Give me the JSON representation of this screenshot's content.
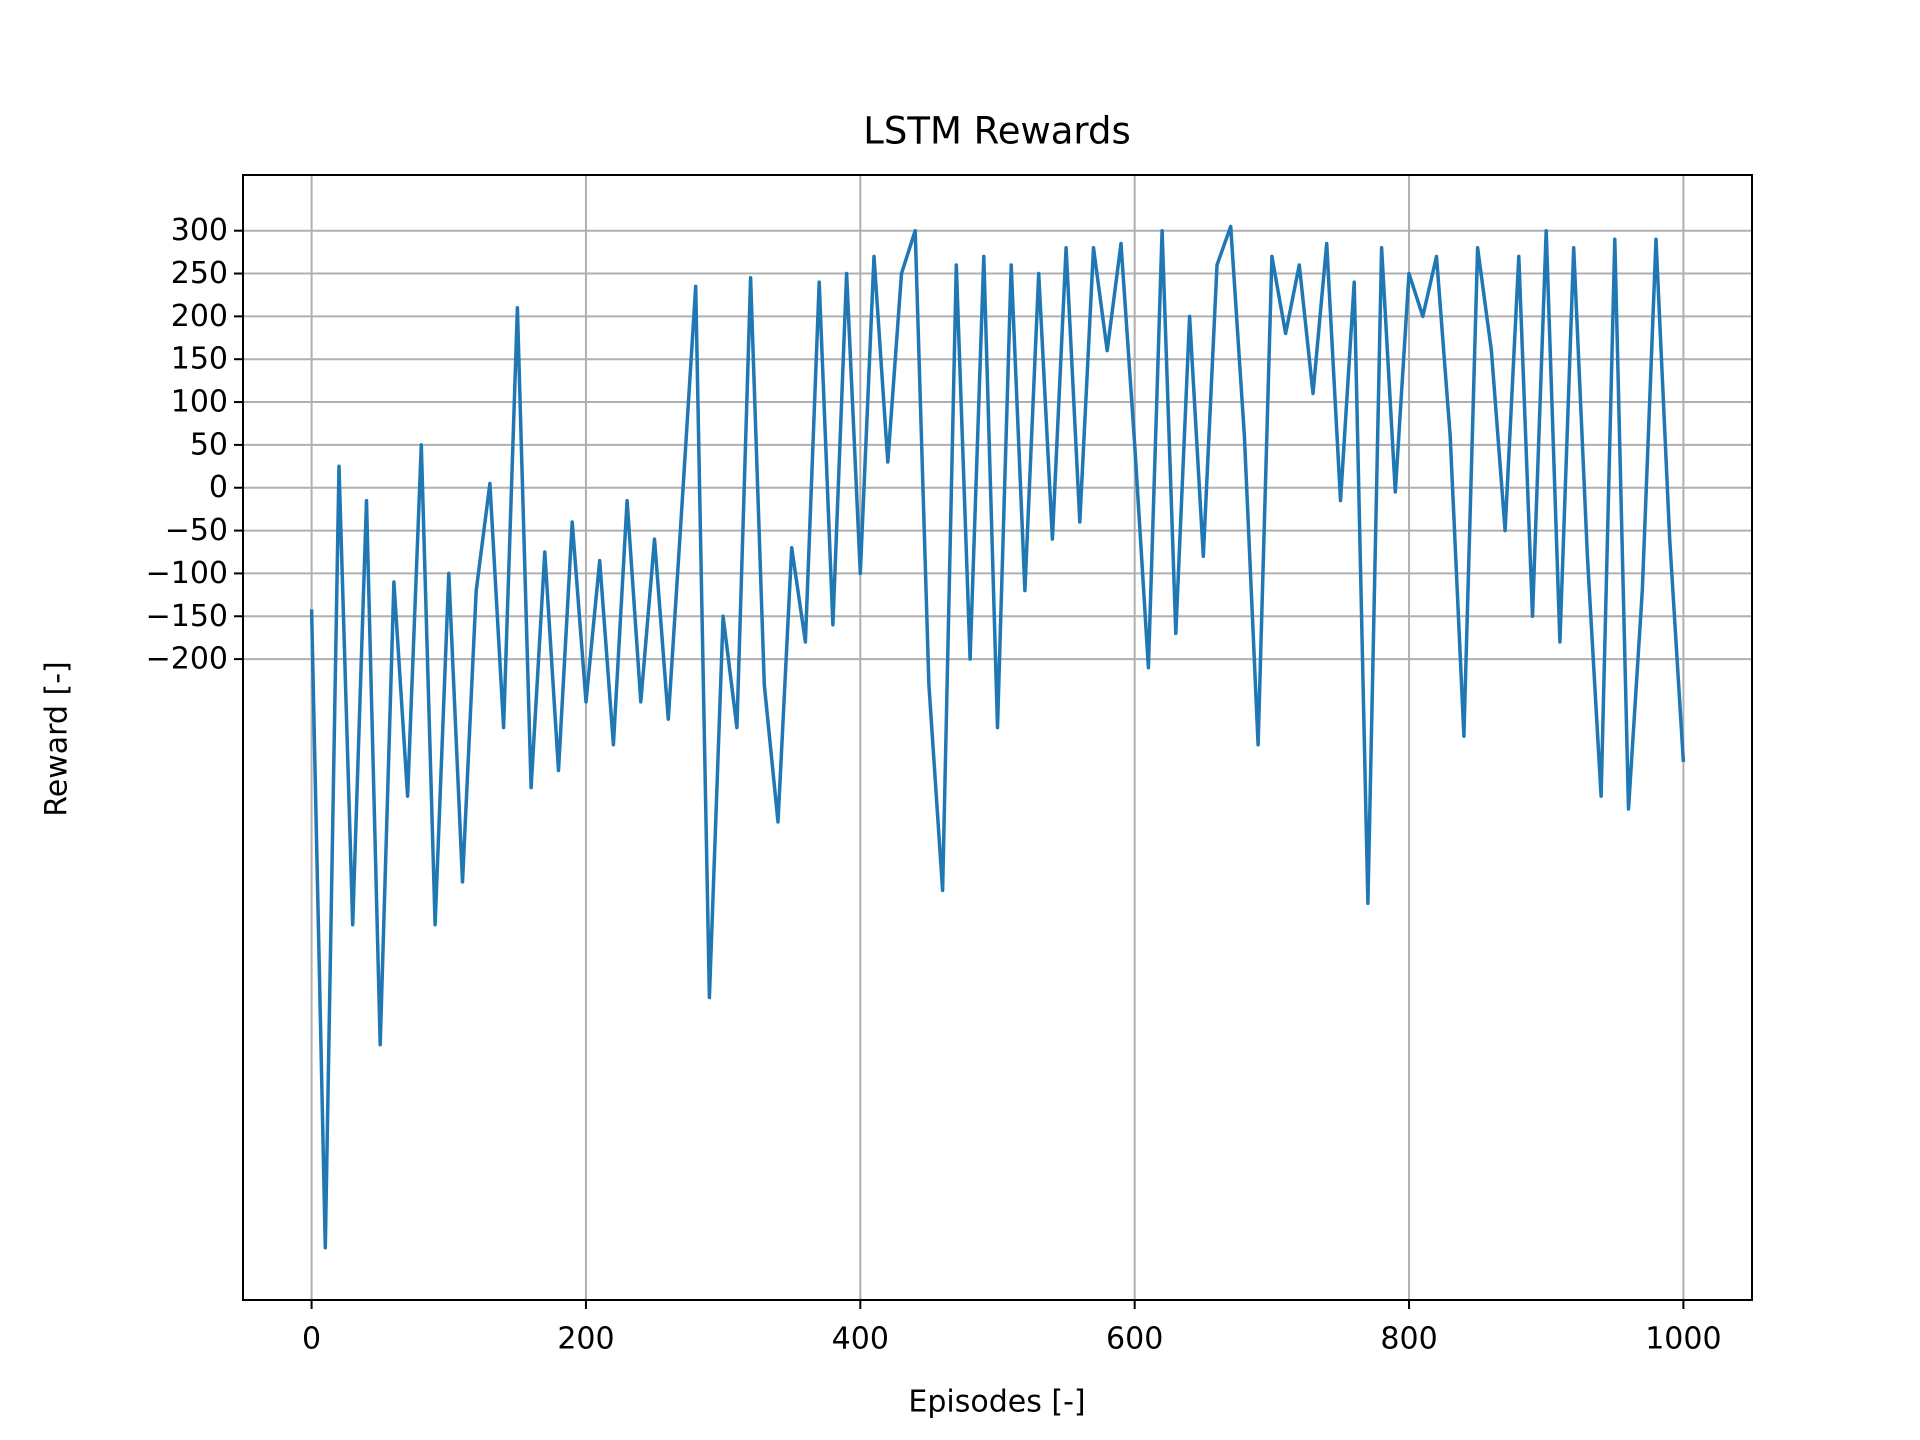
{
  "chart_data": {
    "type": "line",
    "title": "LSTM Rewards",
    "x_label": "Episodes [-]",
    "y_label": "Reward [-]",
    "xlim": [
      -50,
      1050
    ],
    "ylim": [
      -948,
      365
    ],
    "xticks": [
      0,
      200,
      400,
      600,
      800,
      1000
    ],
    "yticks": [
      {
        "value": -200,
        "label": "−200"
      },
      {
        "value": -150,
        "label": "−150"
      },
      {
        "value": -100,
        "label": "−100"
      },
      {
        "value": -50,
        "label": "−50"
      },
      0,
      50,
      100,
      150,
      200,
      250,
      300
    ],
    "grid": true,
    "x": [
      0,
      10,
      20,
      30,
      40,
      50,
      60,
      70,
      80,
      90,
      100,
      110,
      120,
      130,
      140,
      150,
      160,
      170,
      180,
      190,
      200,
      210,
      220,
      230,
      240,
      250,
      260,
      270,
      280,
      290,
      300,
      310,
      320,
      330,
      340,
      350,
      360,
      370,
      380,
      390,
      400,
      410,
      420,
      430,
      440,
      450,
      460,
      470,
      480,
      490,
      500,
      510,
      520,
      530,
      540,
      550,
      560,
      570,
      580,
      590,
      600,
      610,
      620,
      630,
      640,
      650,
      660,
      670,
      680,
      690,
      700,
      710,
      720,
      730,
      740,
      750,
      760,
      770,
      780,
      790,
      800,
      810,
      820,
      830,
      840,
      850,
      860,
      870,
      880,
      890,
      900,
      910,
      920,
      930,
      940,
      950,
      960,
      970,
      980,
      990,
      1000
    ],
    "series": [
      {
        "name": "LSTM",
        "color": "#1f77b4",
        "values": [
          -142,
          -887,
          25,
          -510,
          -15,
          -650,
          -110,
          -360,
          50,
          -510,
          -100,
          -460,
          -120,
          5,
          -280,
          210,
          -350,
          -75,
          -330,
          -40,
          -250,
          -85,
          -300,
          -15,
          -250,
          -60,
          -270,
          -20,
          235,
          -595,
          -150,
          -280,
          245,
          -230,
          -390,
          -70,
          -180,
          240,
          -160,
          250,
          -100,
          270,
          30,
          250,
          300,
          -230,
          -470,
          260,
          -200,
          270,
          -280,
          260,
          -120,
          250,
          -60,
          280,
          -40,
          280,
          160,
          285,
          50,
          -210,
          300,
          -170,
          200,
          -80,
          260,
          305,
          60,
          -300,
          270,
          180,
          260,
          110,
          285,
          -15,
          240,
          -485,
          280,
          -5,
          250,
          200,
          270,
          60,
          -290,
          280,
          160,
          -50,
          270,
          -150,
          300,
          -180,
          280,
          -80,
          -360,
          290,
          -375,
          -120,
          290,
          -60,
          -320
        ]
      }
    ]
  }
}
